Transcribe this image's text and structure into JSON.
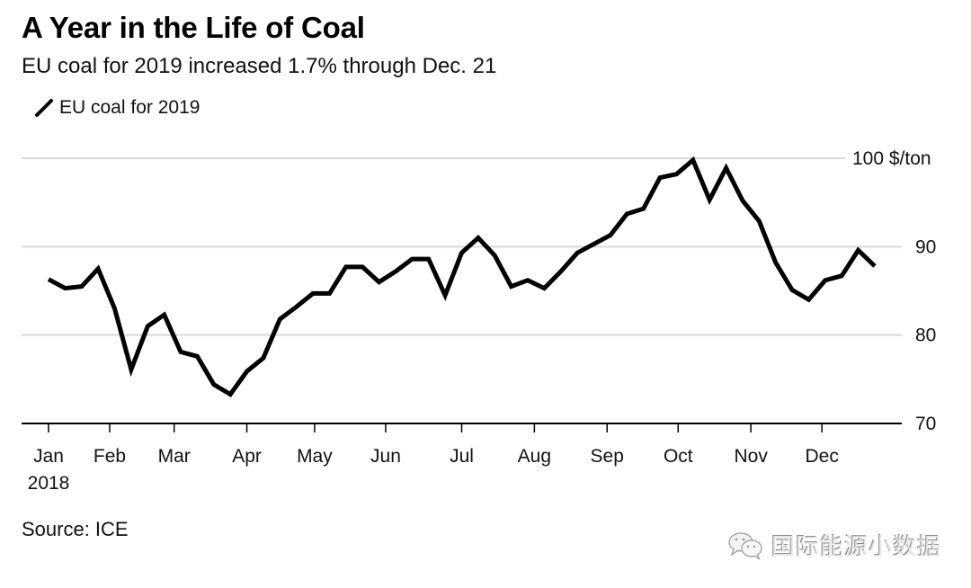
{
  "header": {
    "title": "A Year in the Life of Coal",
    "subtitle": "EU coal for 2019 increased 1.7% through Dec. 21"
  },
  "legend": {
    "items": [
      {
        "label": "EU coal for 2019",
        "color": "#000000"
      }
    ]
  },
  "footer": {
    "source": "Source: ICE"
  },
  "watermark": {
    "icon": "wechat-bubble-icon",
    "text": "国际能源小数据"
  },
  "chart_data": {
    "type": "line",
    "title": "A Year in the Life of Coal",
    "subtitle": "EU coal for 2019 increased 1.7% through Dec. 21",
    "xlabel": "",
    "ylabel": "$/ton",
    "ylim": [
      70,
      100
    ],
    "yticks": [
      {
        "value": 100,
        "label": "100 $/ton"
      },
      {
        "value": 90,
        "label": "90"
      },
      {
        "value": 80,
        "label": "80"
      },
      {
        "value": 70,
        "label": "70"
      }
    ],
    "xlim_weeks": [
      -0.1,
      51.3
    ],
    "xticks": [
      {
        "week": 0,
        "label": "Jan",
        "sublabel": "2018"
      },
      {
        "week": 3.7,
        "label": "Feb"
      },
      {
        "week": 7.6,
        "label": "Mar"
      },
      {
        "week": 12.0,
        "label": "Apr"
      },
      {
        "week": 16.1,
        "label": "May"
      },
      {
        "week": 20.4,
        "label": "Jun"
      },
      {
        "week": 25.0,
        "label": "Jul"
      },
      {
        "week": 29.4,
        "label": "Aug"
      },
      {
        "week": 33.8,
        "label": "Sep"
      },
      {
        "week": 38.1,
        "label": "Oct"
      },
      {
        "week": 42.5,
        "label": "Nov"
      },
      {
        "week": 46.8,
        "label": "Dec"
      }
    ],
    "grid": true,
    "legend_position": "top-left",
    "series": [
      {
        "name": "EU coal for 2019",
        "color": "#000000",
        "x_weeks": [
          0,
          1,
          2,
          3,
          4,
          5,
          6,
          7,
          8,
          9,
          10,
          11,
          12,
          13,
          14,
          15,
          16,
          17,
          18,
          19,
          20,
          21,
          22,
          23,
          24,
          25,
          26,
          27,
          28,
          29,
          30,
          31,
          32,
          33,
          34,
          35,
          36,
          37,
          38,
          39,
          40,
          41,
          42,
          43,
          44,
          45,
          46,
          47,
          48,
          49,
          50
        ],
        "values": [
          86.3,
          85.3,
          85.5,
          87.5,
          83.0,
          76.1,
          81.0,
          82.3,
          78.1,
          77.6,
          74.4,
          73.3,
          75.9,
          77.4,
          81.8,
          83.2,
          84.7,
          84.7,
          87.7,
          87.7,
          86.0,
          87.2,
          88.6,
          88.6,
          84.5,
          89.3,
          91.0,
          89.0,
          85.5,
          86.2,
          85.3,
          87.2,
          89.3,
          90.3,
          91.3,
          93.7,
          94.3,
          97.8,
          98.2,
          99.8,
          95.3,
          98.9,
          95.2,
          92.9,
          88.2,
          85.1,
          84.0,
          86.2,
          86.7,
          89.6,
          87.8
        ]
      }
    ]
  }
}
